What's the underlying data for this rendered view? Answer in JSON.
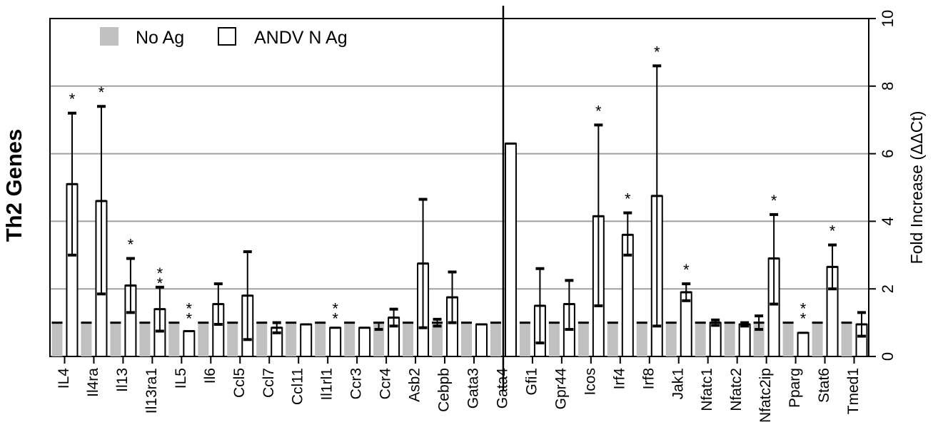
{
  "side_title": "Th2 Genes",
  "colors": {
    "no_ag": "#c0c0c0",
    "andv": "#ffffff",
    "grid": "#a0a0a0",
    "ink": "#000000"
  },
  "chart_data": {
    "type": "bar",
    "ylabel": "Fold Increase (ΔΔCt)",
    "ylim": [
      0,
      10
    ],
    "yticks": [
      0,
      2,
      4,
      6,
      8,
      10
    ],
    "grid": true,
    "legend_position": "top-left",
    "categories": [
      "IL4",
      "Il4ra",
      "Il13",
      "Il13ra1",
      "IL5",
      "Il6",
      "Ccl5",
      "Ccl7",
      "Ccl11",
      "Il1rl1",
      "Ccr3",
      "Ccr4",
      "Asb2",
      "Cebpb",
      "Gata3",
      "Gata4",
      "Gfi1",
      "Gpr44",
      "Icos",
      "Irf4",
      "Irf8",
      "Jak1",
      "Nfatc1",
      "Nfatc2",
      "Nfatc2ip",
      "Pparg",
      "Stat6",
      "Tmed1"
    ],
    "series": [
      {
        "name": "No Ag",
        "values": [
          1,
          1,
          1,
          1,
          1,
          1,
          1,
          1,
          1,
          1,
          1,
          1,
          1,
          1,
          1,
          1,
          1,
          1,
          1,
          1,
          1,
          1,
          1,
          1,
          1,
          1,
          1,
          1
        ],
        "err_upper": [
          0,
          0,
          0,
          0,
          0,
          0,
          0,
          0,
          0,
          0,
          0,
          0,
          0,
          0.1,
          0,
          0,
          0,
          0,
          0,
          0,
          0,
          0,
          0,
          0,
          0.2,
          0,
          0,
          0
        ],
        "err_lower": [
          0,
          0,
          0,
          0,
          0,
          0,
          0,
          0,
          0,
          0,
          0,
          0.2,
          0,
          0.1,
          0,
          0,
          0,
          0,
          0,
          0,
          0,
          0,
          0,
          0,
          0.2,
          0,
          0,
          0
        ]
      },
      {
        "name": "ANDV N Ag",
        "values": [
          5.1,
          4.6,
          2.1,
          1.4,
          0.75,
          1.55,
          1.8,
          0.85,
          0.95,
          0.85,
          0.85,
          1.15,
          2.75,
          1.75,
          0.95,
          6.3,
          1.5,
          1.55,
          4.15,
          3.6,
          4.75,
          1.9,
          1.0,
          0.95,
          2.9,
          0.7,
          2.65,
          0.95
        ],
        "err_upper": [
          2.1,
          2.8,
          0.8,
          0.65,
          0,
          0.6,
          1.3,
          0.15,
          0,
          0,
          0,
          0.25,
          1.9,
          0.75,
          0,
          0,
          1.1,
          0.7,
          2.7,
          0.65,
          3.85,
          0.25,
          0.08,
          0.05,
          1.3,
          0,
          0.65,
          0.35
        ],
        "err_lower": [
          2.1,
          2.75,
          0.8,
          0.65,
          0,
          0.6,
          1.3,
          0.15,
          0,
          0,
          0,
          0.25,
          1.9,
          0.75,
          0,
          0,
          1.1,
          0.75,
          2.65,
          0.6,
          3.85,
          0.25,
          0.08,
          0.05,
          1.35,
          0,
          0.65,
          0.35
        ]
      }
    ],
    "significance": [
      "*",
      "*",
      "*",
      "**",
      "**",
      "",
      "",
      "",
      "",
      "**",
      "",
      "",
      "",
      "",
      "",
      "",
      "",
      "",
      "*",
      "*",
      "*",
      "*",
      "",
      "",
      "*",
      "**",
      "*",
      ""
    ]
  }
}
